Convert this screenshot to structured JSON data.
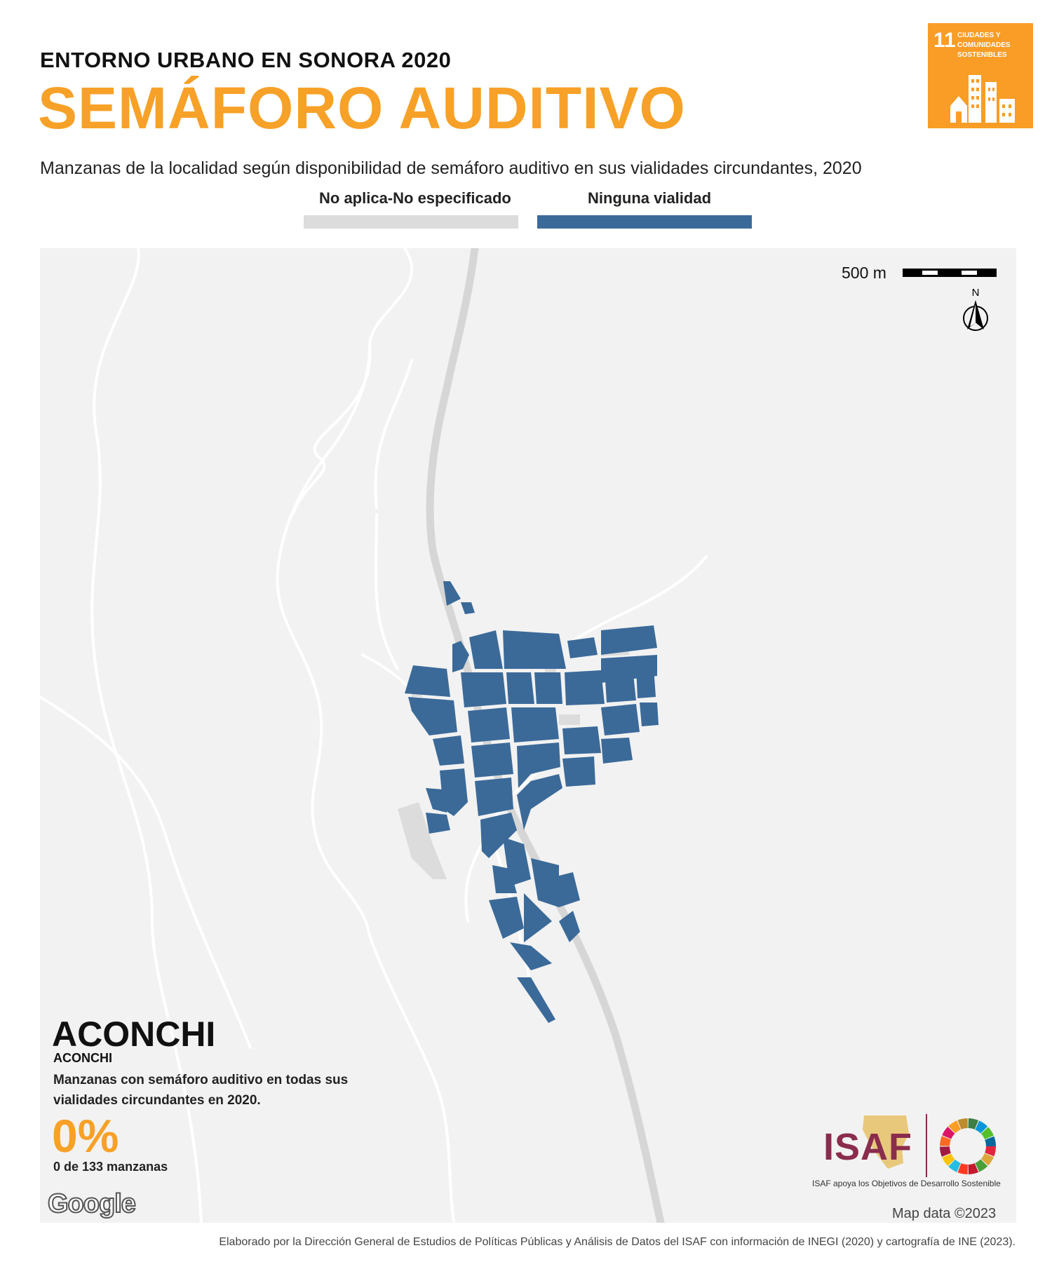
{
  "header": {
    "kicker": "ENTORNO URBANO EN SONORA 2020",
    "title": "SEMÁFORO AUDITIVO",
    "subtitle": "Manzanas de la localidad según disponibilidad de semáforo auditivo en sus vialidades circundantes, 2020"
  },
  "ods_badge": {
    "number": "11",
    "text": "CIUDADES Y COMUNIDADES SOSTENIBLES",
    "color": "#f99d26"
  },
  "legend": [
    {
      "label": "No aplica-No especificado",
      "color": "#dcdcdc"
    },
    {
      "label": "Ninguna vialidad",
      "color": "#3b6a99"
    }
  ],
  "map": {
    "scale_label": "500 m",
    "north_label": "N",
    "google_logo": "Google",
    "attribution": "Map data ©2023",
    "background_color": "#f2f2f2",
    "road_color": "#d8d8d8",
    "block_color": "#3b6a99"
  },
  "place": {
    "municipality": "ACONCHI",
    "locality": "ACONCHI",
    "description": "Manzanas con semáforo auditivo en todas sus vialidades circundantes en 2020.",
    "percent": "0%",
    "count": "0 de 133 manzanas"
  },
  "isaf": {
    "logo_text": "ISAF",
    "caption": "ISAF apoya los Objetivos de Desarrollo Sostenible"
  },
  "footer": "Elaborado por la Dirección General de Estudios de Políticas Públicas y Análisis de Datos del ISAF con información de INEGI (2020) y cartografía de INE (2023)."
}
